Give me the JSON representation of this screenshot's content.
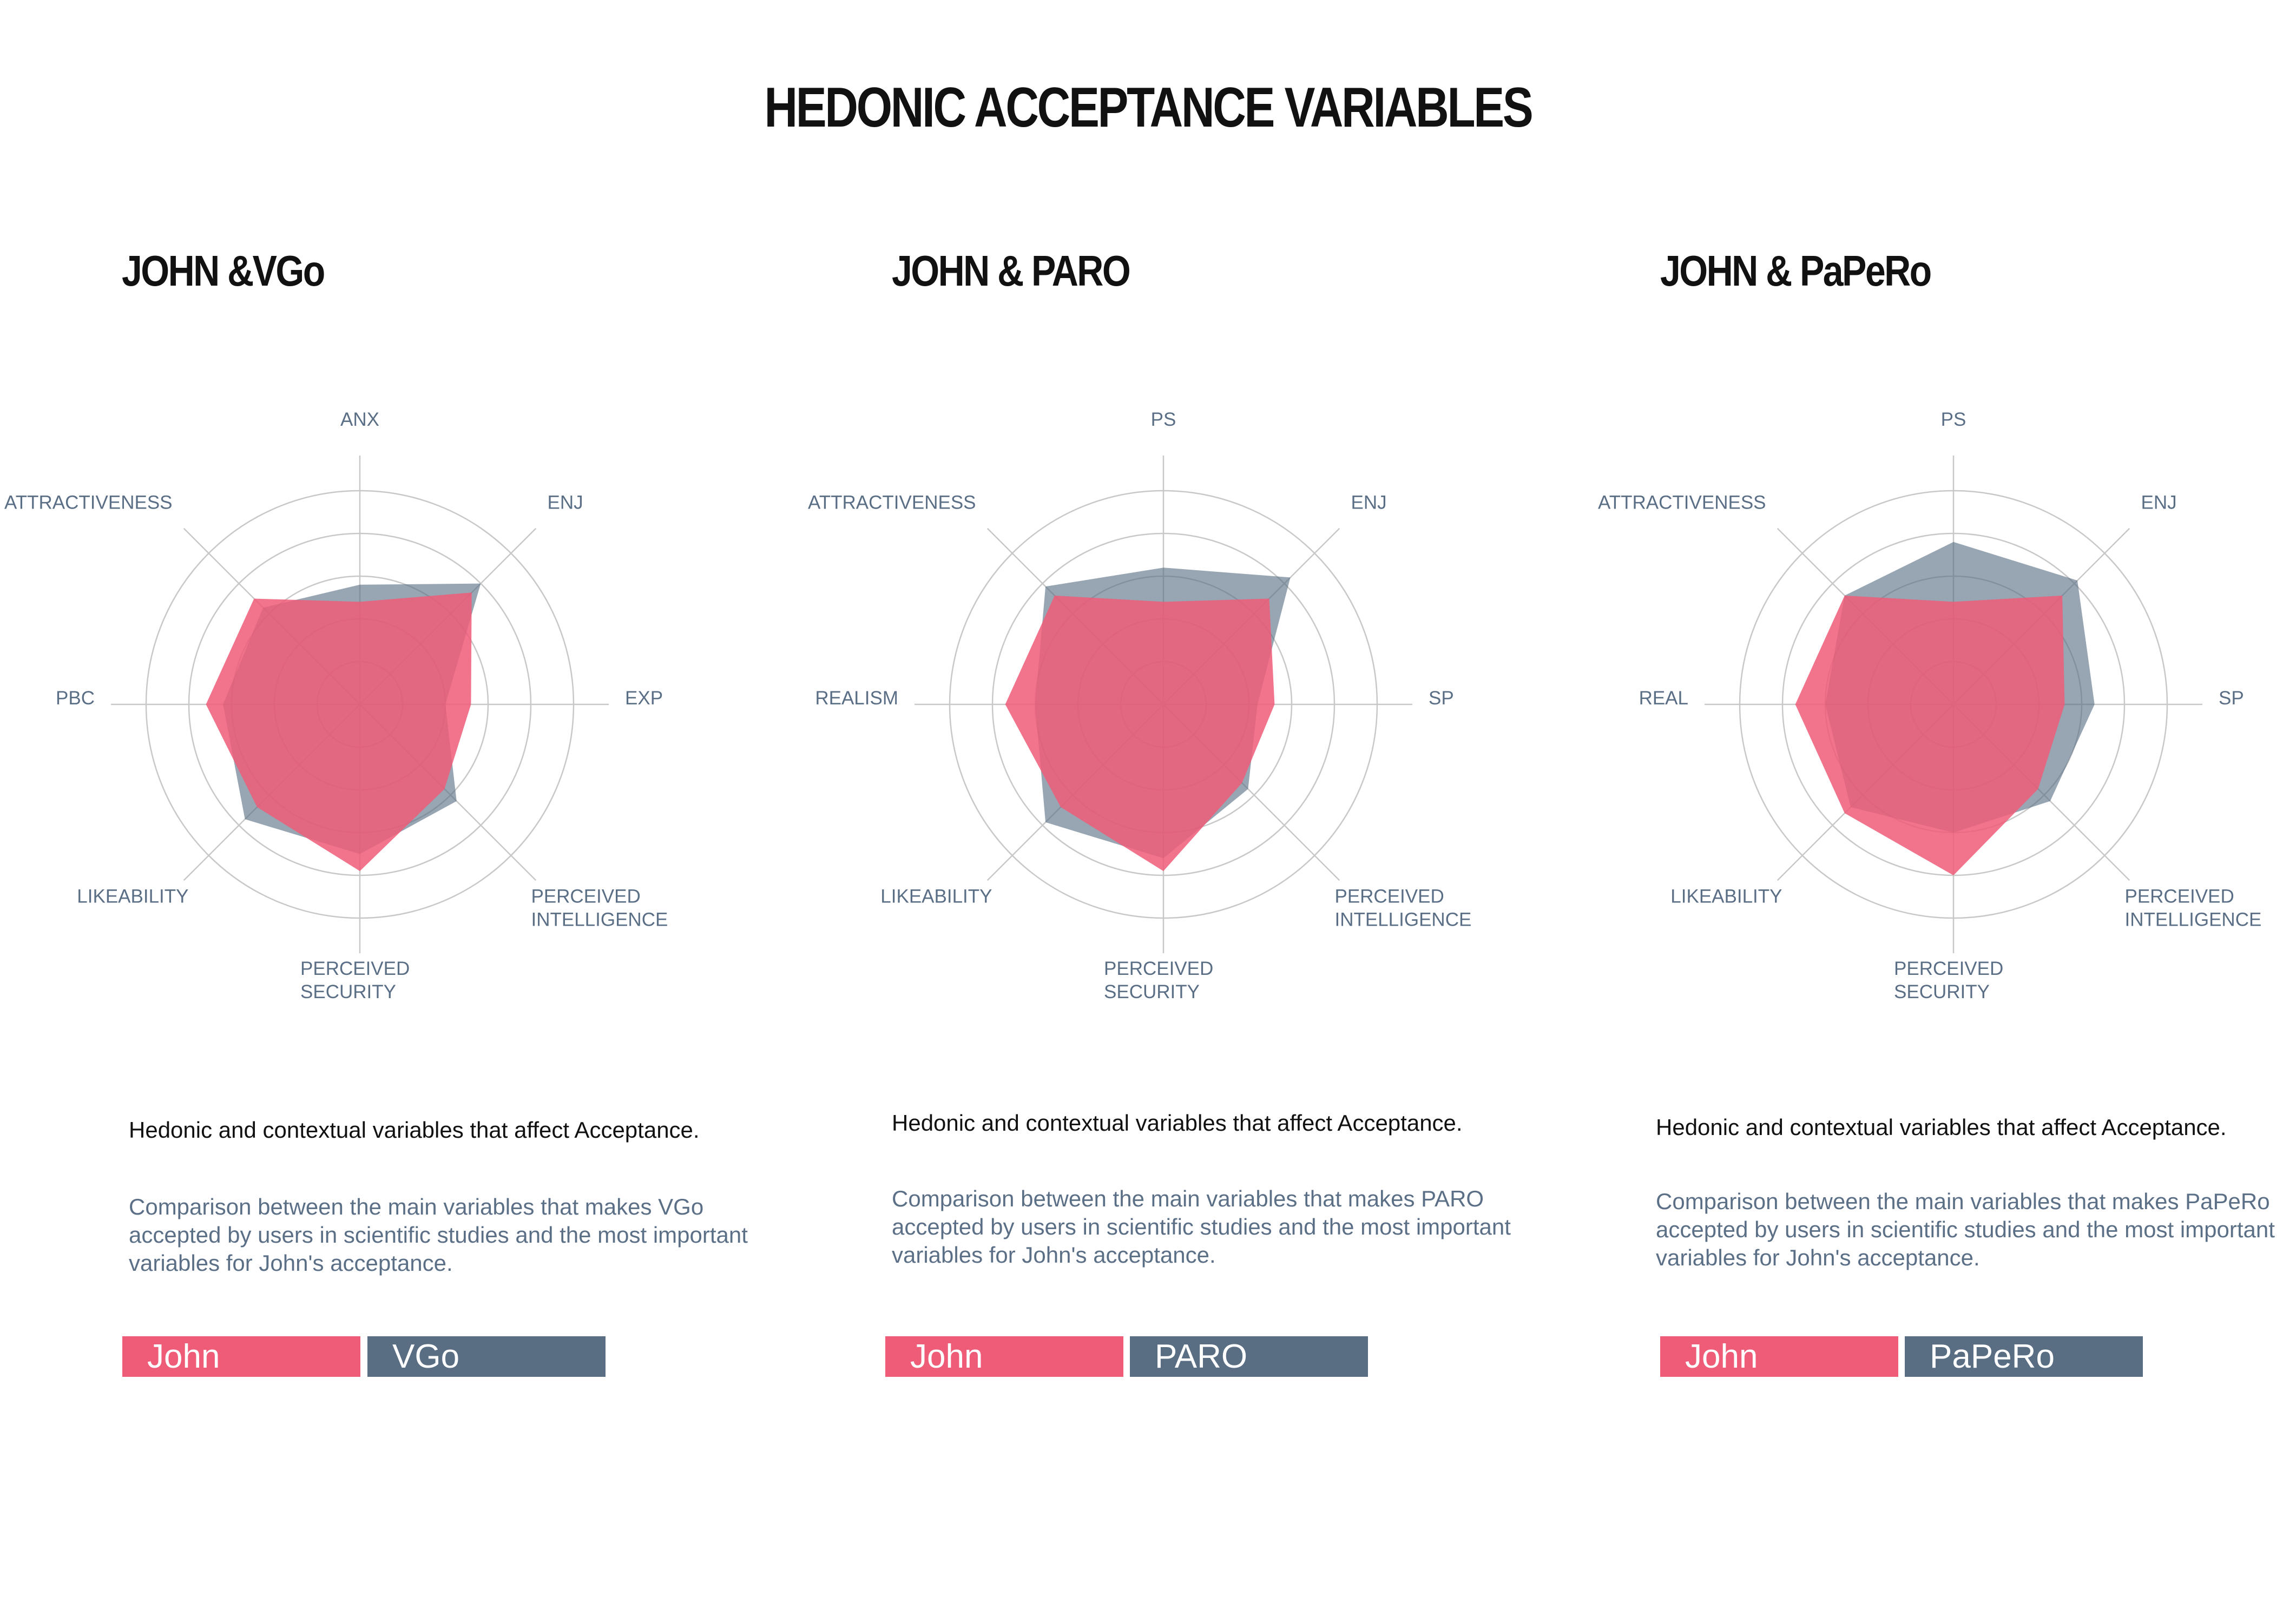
{
  "page_title": "HEDONIC ACCEPTANCE VARIABLES",
  "colors": {
    "john": "#ee5c78",
    "robot": "#596d83",
    "grid": "#c8c8c8",
    "label": "#5a6e85"
  },
  "chart_data": [
    {
      "type": "radar",
      "title": "JOHN &VGo",
      "axes": [
        "ANX",
        "ENJ",
        "EXP",
        "PERCEIVED INTELLIGENCE",
        "PERCEIVED SECURITY",
        "LIKEABILITY",
        "PBC",
        "ATTRACTIVENESS"
      ],
      "rlim": [
        0,
        5
      ],
      "series": [
        {
          "name": "John",
          "values": [
            2.4,
            3.7,
            2.6,
            2.8,
            3.9,
            3.4,
            3.6,
            3.5
          ]
        },
        {
          "name": "VGo",
          "values": [
            2.8,
            4.0,
            2.0,
            3.2,
            3.5,
            3.8,
            3.2,
            3.2
          ]
        }
      ],
      "description_title": "Hedonic and contextual variables that affect Acceptance.",
      "description": "Comparison between the main variables that makes VGo accepted by users in scientific studies and the most important variables for John's acceptance."
    },
    {
      "type": "radar",
      "title": "JOHN & PARO",
      "axes": [
        "PS",
        "ENJ",
        "SP",
        "PERCEIVED INTELLIGENCE",
        "PERCEIVED SECURITY",
        "LIKEABILITY",
        "REALISM",
        "ATTRACTIVENESS"
      ],
      "rlim": [
        0,
        5
      ],
      "series": [
        {
          "name": "John",
          "values": [
            2.4,
            3.5,
            2.6,
            2.6,
            3.9,
            3.4,
            3.7,
            3.6
          ]
        },
        {
          "name": "PARO",
          "values": [
            3.2,
            4.2,
            2.2,
            2.8,
            3.6,
            3.9,
            3.0,
            3.9
          ]
        }
      ],
      "description_title": "Hedonic and contextual variables that affect Acceptance.",
      "description": "Comparison between the main variables that makes PARO accepted by users in scientific studies and the most important variables for John's acceptance."
    },
    {
      "type": "radar",
      "title": "JOHN & PaPeRo",
      "axes": [
        "PS",
        "ENJ",
        "SP",
        "PERCEIVED INTELLIGENCE",
        "PERCEIVED SECURITY",
        "LIKEABILITY",
        "REAL",
        "ATTRACTIVENESS"
      ],
      "rlim": [
        0,
        5
      ],
      "series": [
        {
          "name": "John",
          "values": [
            2.4,
            3.6,
            2.6,
            2.8,
            4.0,
            3.6,
            3.7,
            3.6
          ]
        },
        {
          "name": "PaPeRo",
          "values": [
            3.8,
            4.1,
            3.3,
            3.2,
            3.0,
            3.4,
            3.0,
            3.6
          ]
        }
      ],
      "description_title": "Hedonic and contextual variables that affect Acceptance.",
      "description": "Comparison between the main variables that makes PaPeRo accepted by users in scientific studies and the most important variables for John's acceptance."
    }
  ]
}
